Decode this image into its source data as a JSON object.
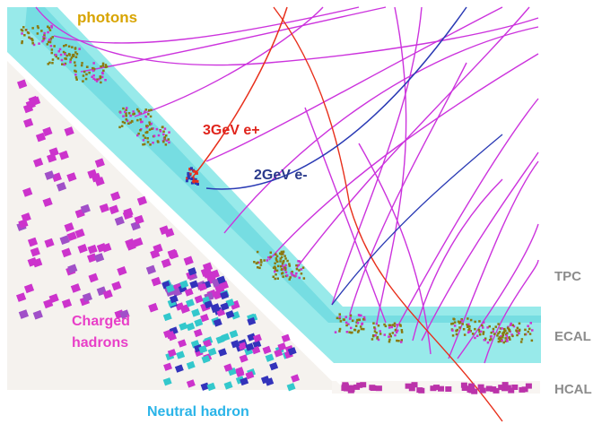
{
  "labels": {
    "photons": "photons",
    "e_plus": "3GeV e+",
    "e_minus": "2GeV e-",
    "charged_line1": "Charged",
    "charged_line2": "hadrons",
    "neutral": "Neutral hadron",
    "tpc": "TPC",
    "ecal": "ECAL",
    "hcal": "HCAL"
  },
  "colors": {
    "photons": "#d8a400",
    "e_plus": "#e0241c",
    "e_minus": "#2a3a8c",
    "charged": "#e83ec8",
    "neutral": "#2ab4e8",
    "detector_label": "#8c8c8c",
    "ecal_band": "#7fe3e3",
    "ecal_band_dark": "#3cc6cf",
    "hcal_region": "#f5f2ef",
    "charged_track": "#cc33dd",
    "charged_cell": "#cc33cc",
    "neutral_cell_blue": "#3333bb",
    "neutral_cell_cyan": "#33c8cc",
    "photon_hit": "#8a7a10",
    "e_minus_track": "#2a3ab4",
    "e_plus_track": "#e8301c"
  }
}
